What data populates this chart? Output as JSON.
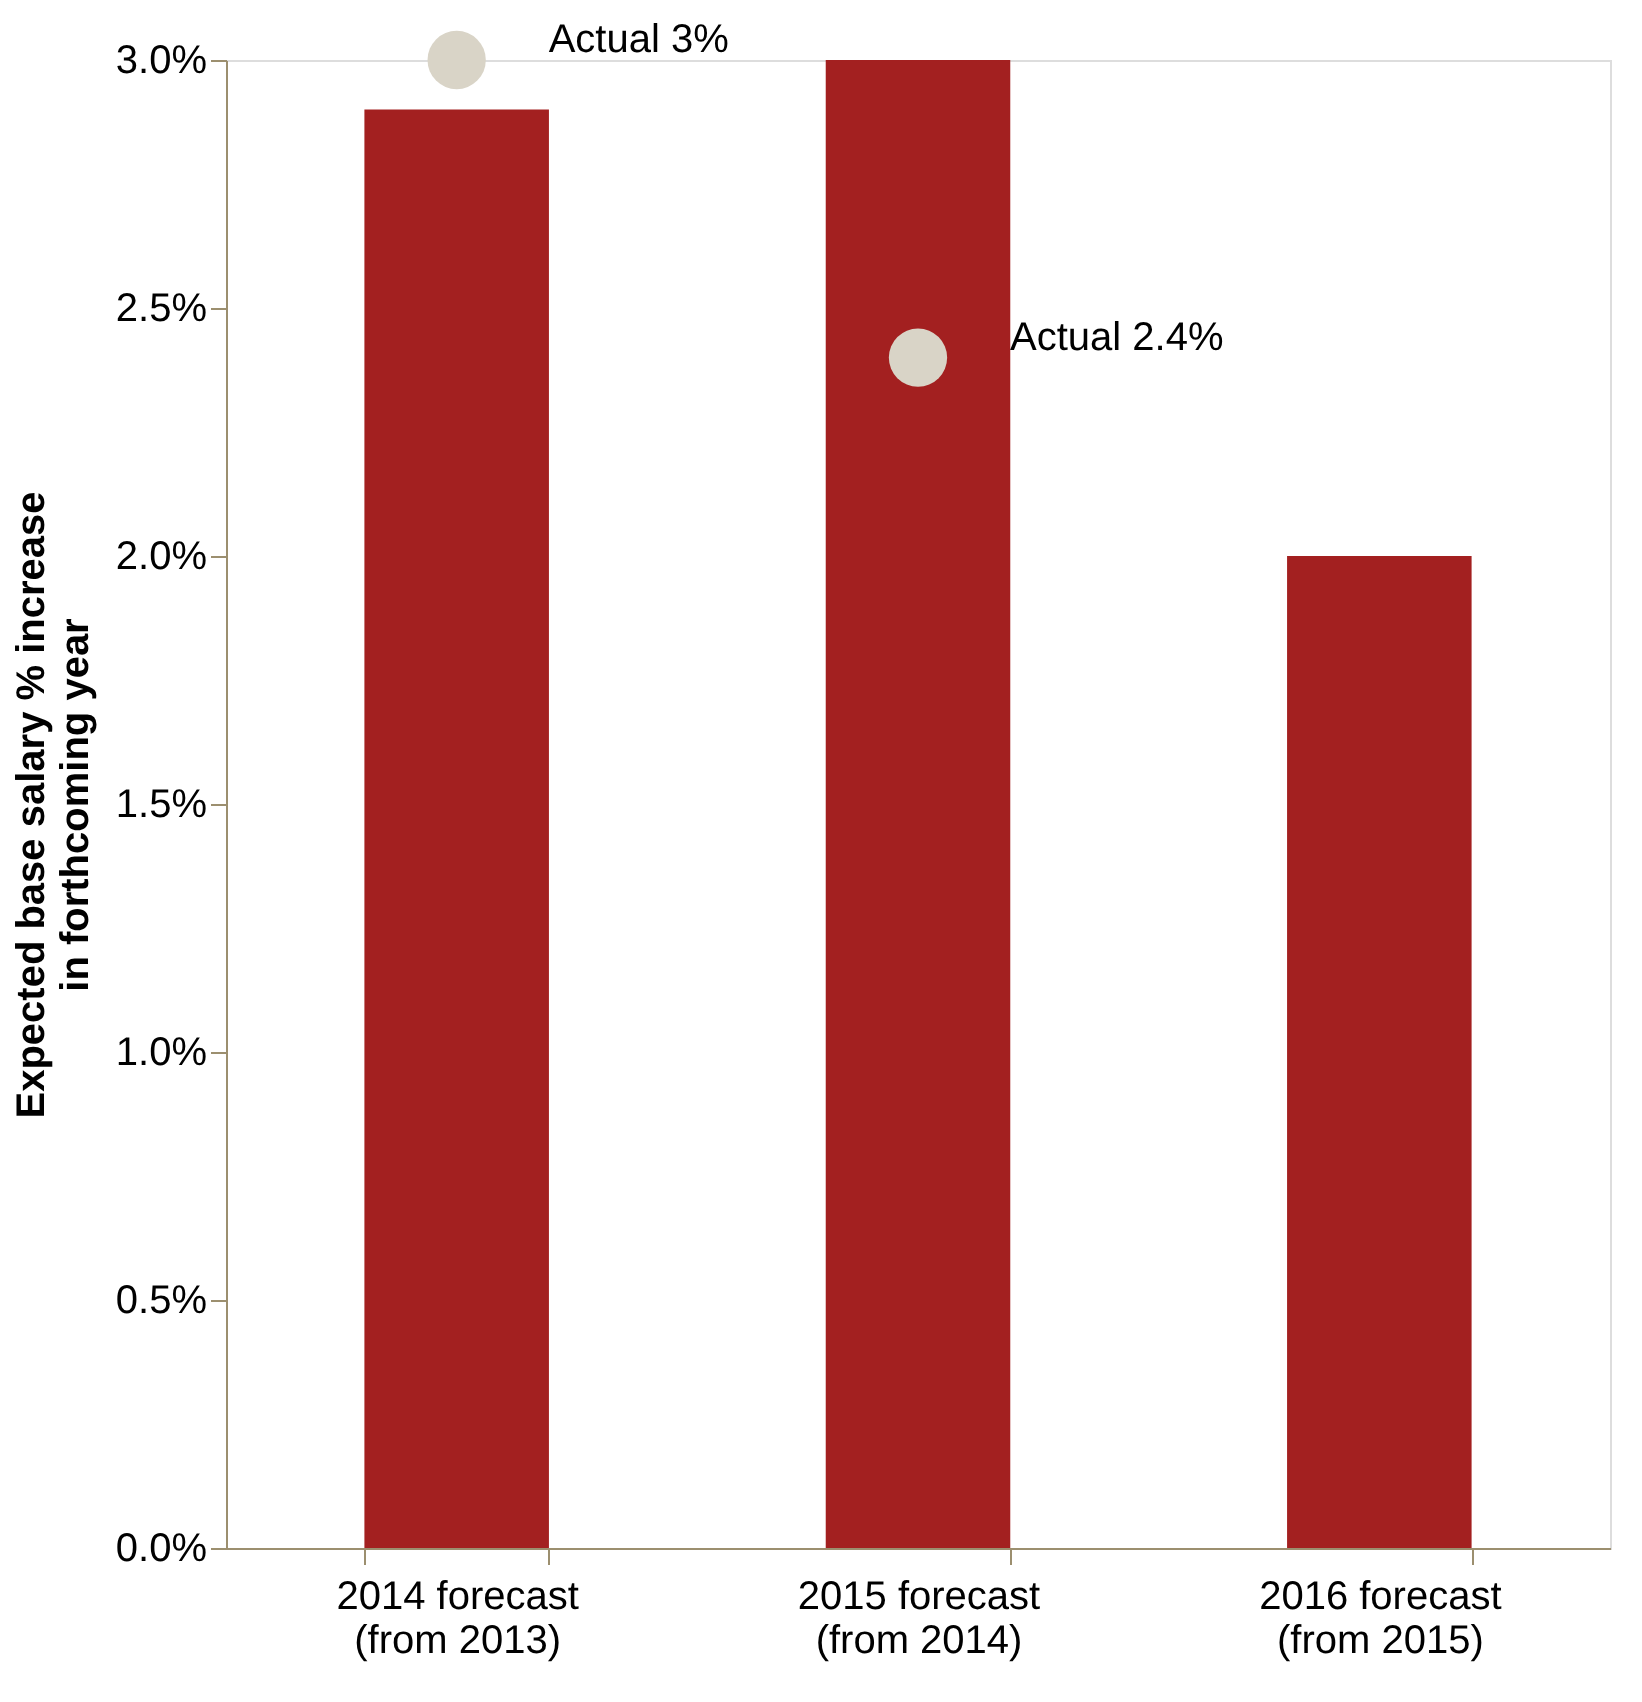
{
  "chart_data": {
    "type": "bar",
    "ylabel": "Expected base salary % increase in forthcoming year",
    "categories": [
      "2014 forecast\n(from 2013)",
      "2015 forecast\n(from 2014)",
      "2016 forecast\n(from 2015)"
    ],
    "ylim": [
      0,
      3.0
    ],
    "yticks": [
      {
        "value": 0,
        "label": "0.0%"
      },
      {
        "value": 0.5,
        "label": "0.5%"
      },
      {
        "value": 1.0,
        "label": "1.0%"
      },
      {
        "value": 1.5,
        "label": "1.5%"
      },
      {
        "value": 2.0,
        "label": "2.0%"
      },
      {
        "value": 2.5,
        "label": "2.5%"
      },
      {
        "value": 3.0,
        "label": "3.0%"
      }
    ],
    "grid": false,
    "series": [
      {
        "color": "#a32020",
        "values": [
          2.9,
          3.0,
          2.0
        ]
      },
      {
        "type": "scatter",
        "color": "#d9d4c7",
        "marker": "circle",
        "x": [
          "2014 forecast\n(from 2013)",
          "2015 forecast\n(from 2014)"
        ],
        "values": [
          3.0,
          2.4
        ],
        "value_labels": [
          "Actual 3%",
          "Actual 2.4%"
        ]
      }
    ]
  }
}
